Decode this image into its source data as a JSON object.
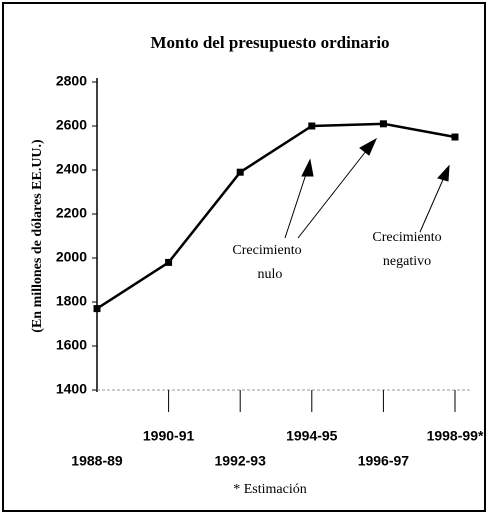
{
  "chart_data": {
    "type": "line",
    "title": "Monto del presupuesto ordinario",
    "y_label": "(En millones de dólares EE.UU.)",
    "categories": [
      "1988-89",
      "1990-91",
      "1992-93",
      "1994-95",
      "1996-97",
      "1998-99*"
    ],
    "values": [
      1770,
      1980,
      2390,
      2600,
      2610,
      2550
    ],
    "color": "#000000",
    "ylim": [
      1400,
      2800
    ],
    "yticks": [
      1400,
      1600,
      1800,
      2000,
      2200,
      2400,
      2600,
      2800
    ],
    "annotations": [
      {
        "lines": [
          "Crecimiento",
          "nulo"
        ]
      },
      {
        "lines": [
          "Crecimiento",
          "negativo"
        ]
      }
    ],
    "footnote": "* Estimación"
  }
}
